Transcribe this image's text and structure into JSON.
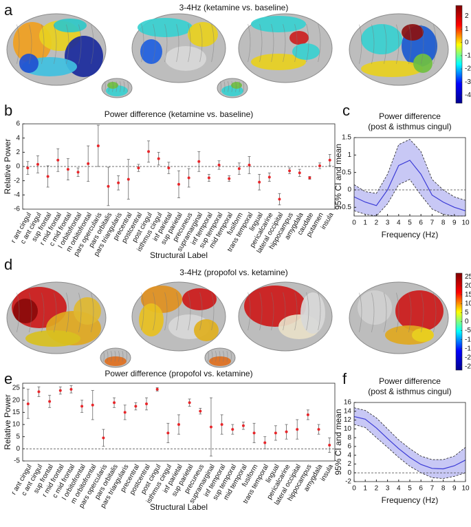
{
  "panel_labels": [
    "a",
    "b",
    "c",
    "d",
    "e",
    "f"
  ],
  "chart_data": [
    {
      "type": "colorbar",
      "title": "3-4Hz (ketamine vs. baseline)",
      "colors": [
        "#00008f",
        "#0000ff",
        "#00ffff",
        "#ffff00",
        "#ff0000",
        "#800000"
      ],
      "ylim": [
        -4.6,
        2.8
      ],
      "yticks": [
        -4,
        -3,
        -2,
        -1,
        0,
        1,
        2
      ]
    },
    {
      "type": "errorbar",
      "title": "Power difference (ketamine vs. baseline)",
      "ylabel": "Relative Power",
      "xlabel": "Structural Label",
      "categories": [
        "r ant cingul",
        "c ant cingul",
        "sup frontal",
        "r mid frontal",
        "c mid frontal",
        "l orbitofrontal",
        "m orbitofrontal",
        "pars opercularis",
        "pars orbitalis",
        "pars triangularis",
        "precentral",
        "postcentral",
        "post cingul",
        "isthmus cingul",
        "inf parietal",
        "sup parietal",
        "precuneus",
        "supramarginal",
        "inf temporal",
        "sup temporal",
        "mid temporal",
        "fusiform",
        "trans temporal",
        "lingual",
        "pericalcarine",
        "lateral occipital",
        "hippocampus",
        "amygdala",
        "caudate",
        "putamen",
        "insula"
      ],
      "values": [
        -0.2,
        0.3,
        -1.4,
        0.9,
        -0.4,
        -0.8,
        0.4,
        2.9,
        -2.8,
        -2.3,
        -1.8,
        -0.2,
        2.1,
        1.1,
        -0.2,
        -2.5,
        -1.6,
        0.7,
        -1.6,
        0.2,
        -1.7,
        -0.3,
        0.2,
        -2.2,
        -1.5,
        -4.6,
        -0.6,
        -0.9,
        -1.6,
        0.1,
        0.9
      ],
      "errors": [
        0.9,
        1.2,
        1.5,
        1.6,
        1.5,
        0.6,
        2.5,
        2.9,
        2.7,
        1.0,
        2.8,
        0.5,
        1.5,
        0.9,
        0.8,
        1.9,
        1.3,
        1.4,
        0.5,
        0.6,
        0.4,
        0.8,
        1.2,
        1.1,
        0.6,
        0.8,
        0.4,
        0.5,
        0.2,
        0.4,
        0.8
      ],
      "color": "#e8262a",
      "errorbar_color": "#666666",
      "reference_line": 0,
      "ylim": [
        -6,
        6
      ],
      "yticks": [
        -6,
        -4,
        -2,
        0,
        2,
        4,
        6
      ]
    },
    {
      "type": "line",
      "title": "Power difference",
      "subtitle": "(post & isthmus cingul)",
      "ylabel": "95% CI and mean",
      "xlabel": "Frequency (Hz)",
      "x": [
        0,
        1,
        2,
        3,
        4,
        5,
        6,
        7,
        8,
        9,
        10
      ],
      "values": [
        -0.2,
        -0.35,
        -0.45,
        0.0,
        0.7,
        0.85,
        0.45,
        -0.15,
        -0.35,
        -0.5,
        -0.6
      ],
      "upper": [
        0.15,
        -0.05,
        -0.1,
        0.45,
        1.3,
        1.45,
        1.1,
        0.3,
        0.0,
        -0.2,
        -0.3
      ],
      "lower": [
        -0.6,
        -0.7,
        -0.75,
        -0.4,
        0.15,
        0.3,
        -0.15,
        -0.55,
        -0.7,
        -0.75,
        -0.75
      ],
      "color": "#3a3ad6",
      "band_color": "#c8c8f5",
      "reference_line": 0,
      "xlim": [
        0,
        10
      ],
      "xticks": [
        0,
        1,
        2,
        3,
        4,
        5,
        6,
        7,
        8,
        9,
        10
      ],
      "ylim": [
        -0.75,
        1.5
      ],
      "yticks": [
        -0.5,
        0,
        0.5,
        1,
        1.5
      ]
    },
    {
      "type": "colorbar",
      "title": "3-4Hz (propofol vs. ketamine)",
      "colors": [
        "#00008f",
        "#0000ff",
        "#00ffff",
        "#ffff00",
        "#ff0000",
        "#800000"
      ],
      "ylim": [
        -27,
        27
      ],
      "yticks": [
        -25,
        -20,
        -15,
        -10,
        -5,
        0,
        5,
        10,
        15,
        20,
        25
      ]
    },
    {
      "type": "errorbar",
      "title": "Power difference (propofol vs. ketamine)",
      "ylabel": "Relative Power",
      "xlabel": "Structural Label",
      "categories": [
        "r ant cingul",
        "c ant cingul",
        "sup frontal",
        "r mid frontal",
        "c mid frontal",
        "l orbitofrontal",
        "m orbitofrontal",
        "pars opercularis",
        "pars orbitalis",
        "pars triangularis",
        "precentral",
        "postcentral",
        "post cingul",
        "isthmus cingul",
        "inf parietal",
        "sup parietal",
        "precuneus",
        "supramarginal",
        "inf temporal",
        "sup temporal",
        "mid temporal",
        "fusiform",
        "trans temporal",
        "lingual",
        "pericalcarine",
        "lateral occipital",
        "hippocampus",
        "amygdala",
        "insula"
      ],
      "values": [
        18.5,
        23.5,
        19.5,
        24,
        24.5,
        17.5,
        18,
        4.5,
        19,
        15,
        17.5,
        18.5,
        24.5,
        6.5,
        10,
        19,
        15.5,
        9,
        10,
        8,
        9.5,
        6.5,
        2.5,
        6.5,
        7,
        8,
        14,
        8,
        1.5
      ],
      "errors": [
        6,
        2,
        2.5,
        1.5,
        1.5,
        2.5,
        6,
        3.5,
        2,
        3,
        1.5,
        2.5,
        0.7,
        4,
        4,
        1.5,
        1.2,
        12,
        4,
        2,
        1.5,
        4,
        2.5,
        3,
        3,
        4,
        2,
        2,
        3
      ],
      "color": "#e8262a",
      "errorbar_color": "#666666",
      "reference_line": 0,
      "ylim": [
        -5,
        27
      ],
      "yticks": [
        -5,
        0,
        5,
        10,
        15,
        20,
        25
      ]
    },
    {
      "type": "line",
      "title": "Power difference",
      "subtitle": "(post & isthmus cingul)",
      "ylabel": "95% CI and mean",
      "xlabel": "Frequency (Hz)",
      "x": [
        0,
        1,
        2,
        3,
        4,
        5,
        6,
        7,
        8,
        9,
        10
      ],
      "values": [
        12.8,
        12.2,
        10.2,
        7.8,
        5.5,
        3.5,
        1.9,
        1.0,
        0.9,
        1.6,
        2.9
      ],
      "upper": [
        14.8,
        14.2,
        12.5,
        10,
        7.5,
        5.5,
        3.8,
        3,
        3,
        3.8,
        5.8
      ],
      "lower": [
        11,
        10.3,
        8,
        5.8,
        3.5,
        1.5,
        0,
        -1.1,
        -1.3,
        -0.8,
        0
      ],
      "color": "#3a3ad6",
      "band_color": "#c8c8f5",
      "reference_line": 0,
      "xlim": [
        0,
        10
      ],
      "xticks": [
        0,
        1,
        2,
        3,
        4,
        5,
        6,
        7,
        8,
        9,
        10
      ],
      "ylim": [
        -2,
        16
      ],
      "yticks": [
        -2,
        0,
        2,
        4,
        6,
        8,
        10,
        12,
        14,
        16
      ]
    }
  ]
}
